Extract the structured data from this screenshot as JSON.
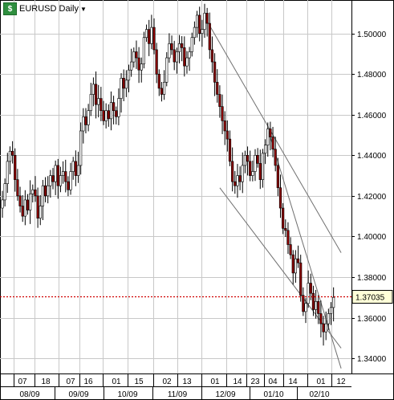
{
  "title": {
    "text": "EURUSD Daily",
    "icon": "chart-symbol-icon"
  },
  "last_price_label": "1.37035",
  "colors": {
    "up": "#ffffff",
    "down": "#8b0000",
    "wick": "#000000",
    "grid": "#c8c8c8",
    "price_line": "#d00000",
    "trend": "#707070",
    "label_bg": "#ffffd8"
  },
  "chart_data": {
    "type": "candlestick",
    "symbol": "EURUSD",
    "timeframe": "Daily",
    "y_ticks": [
      "1.34000",
      "1.36000",
      "1.38000",
      "1.40000",
      "1.42000",
      "1.44000",
      "1.46000",
      "1.48000",
      "1.50000"
    ],
    "ylim": [
      1.3325,
      1.5165
    ],
    "current_price": 1.37035,
    "x_day_ticks": [
      "07",
      "18",
      "07",
      "16",
      "01",
      "15",
      "02",
      "13",
      "01",
      "14",
      "23",
      "04",
      "14",
      "01",
      "12"
    ],
    "x_month_ticks": [
      "08/09",
      "09/09",
      "10/09",
      "11/09",
      "12/09",
      "01/10",
      "02/10"
    ],
    "closes": [
      1.418,
      1.426,
      1.437,
      1.442,
      1.44,
      1.428,
      1.42,
      1.415,
      1.41,
      1.418,
      1.413,
      1.421,
      1.423,
      1.42,
      1.409,
      1.415,
      1.425,
      1.42,
      1.425,
      1.43,
      1.427,
      1.435,
      1.425,
      1.43,
      1.432,
      1.427,
      1.423,
      1.432,
      1.437,
      1.43,
      1.435,
      1.452,
      1.459,
      1.455,
      1.462,
      1.47,
      1.475,
      1.465,
      1.468,
      1.462,
      1.457,
      1.462,
      1.458,
      1.466,
      1.462,
      1.459,
      1.468,
      1.478,
      1.473,
      1.477,
      1.482,
      1.486,
      1.491,
      1.488,
      1.482,
      1.485,
      1.498,
      1.502,
      1.495,
      1.503,
      1.492,
      1.48,
      1.473,
      1.47,
      1.476,
      1.488,
      1.495,
      1.492,
      1.486,
      1.491,
      1.495,
      1.493,
      1.484,
      1.488,
      1.491,
      1.498,
      1.503,
      1.509,
      1.5,
      1.502,
      1.51,
      1.505,
      1.492,
      1.486,
      1.476,
      1.47,
      1.464,
      1.457,
      1.452,
      1.448,
      1.437,
      1.427,
      1.425,
      1.43,
      1.427,
      1.435,
      1.44,
      1.437,
      1.43,
      1.432,
      1.44,
      1.436,
      1.428,
      1.441,
      1.445,
      1.453,
      1.449,
      1.443,
      1.435,
      1.424,
      1.414,
      1.404,
      1.403,
      1.396,
      1.391,
      1.382,
      1.389,
      1.387,
      1.371,
      1.363,
      1.367,
      1.377,
      1.372,
      1.364,
      1.368,
      1.362,
      1.357,
      1.353,
      1.357,
      1.362,
      1.365,
      1.37
    ],
    "trendlines_price": [
      {
        "from_index": 81,
        "from_price": 1.506,
        "to_index": 134,
        "to_price": 1.392
      },
      {
        "from_index": 105,
        "from_price": 1.453,
        "to_index": 134,
        "to_price": 1.335
      },
      {
        "from_index": 86,
        "from_price": 1.424,
        "to_index": 134,
        "to_price": 1.345
      }
    ]
  }
}
